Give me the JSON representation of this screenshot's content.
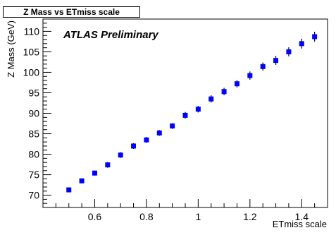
{
  "chart_data": {
    "type": "scatter",
    "title": "Z Mass vs ETmiss scale",
    "annotation": "ATLAS Preliminary",
    "xlabel": "ETmiss scale",
    "ylabel": "Z Mass (GeV)",
    "xlim": [
      0.4,
      1.5
    ],
    "ylim": [
      67,
      113
    ],
    "x_ticks": [
      0.6,
      0.8,
      1,
      1.2,
      1.4
    ],
    "y_ticks": [
      70,
      75,
      80,
      85,
      90,
      95,
      100,
      105,
      110
    ],
    "grid": false,
    "marker_color": "#0000ff",
    "points": [
      {
        "x": 0.5,
        "y": 71.3,
        "err": 0.6
      },
      {
        "x": 0.55,
        "y": 73.5,
        "err": 0.6
      },
      {
        "x": 0.6,
        "y": 75.4,
        "err": 0.6
      },
      {
        "x": 0.65,
        "y": 77.4,
        "err": 0.7
      },
      {
        "x": 0.7,
        "y": 79.8,
        "err": 0.7
      },
      {
        "x": 0.75,
        "y": 82.0,
        "err": 0.7
      },
      {
        "x": 0.8,
        "y": 83.5,
        "err": 0.7
      },
      {
        "x": 0.85,
        "y": 85.2,
        "err": 0.7
      },
      {
        "x": 0.9,
        "y": 86.9,
        "err": 0.7
      },
      {
        "x": 0.95,
        "y": 89.5,
        "err": 0.8
      },
      {
        "x": 1.0,
        "y": 91.0,
        "err": 0.8
      },
      {
        "x": 1.05,
        "y": 93.5,
        "err": 0.9
      },
      {
        "x": 1.1,
        "y": 95.3,
        "err": 0.9
      },
      {
        "x": 1.15,
        "y": 97.2,
        "err": 0.9
      },
      {
        "x": 1.2,
        "y": 99.2,
        "err": 1.0
      },
      {
        "x": 1.25,
        "y": 101.4,
        "err": 1.0
      },
      {
        "x": 1.3,
        "y": 102.9,
        "err": 1.1
      },
      {
        "x": 1.35,
        "y": 105.0,
        "err": 1.1
      },
      {
        "x": 1.4,
        "y": 107.0,
        "err": 1.2
      },
      {
        "x": 1.45,
        "y": 108.7,
        "err": 1.2
      }
    ]
  }
}
